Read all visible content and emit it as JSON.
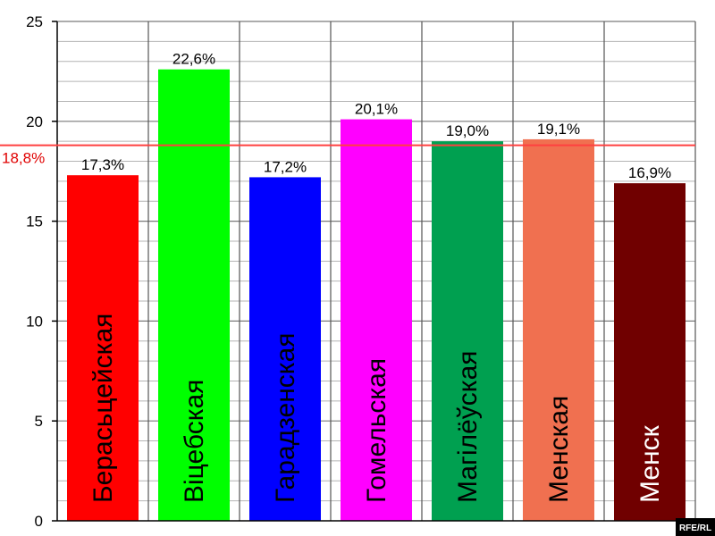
{
  "chart_data": {
    "type": "bar",
    "categories": [
      "Берасьцейская",
      "Віцебская",
      "Гарадзенская",
      "Гомельская",
      "Магілёўская",
      "Менская",
      "Менск"
    ],
    "values": [
      17.3,
      22.6,
      17.2,
      20.1,
      19.0,
      19.1,
      16.9
    ],
    "value_labels": [
      "17,3%",
      "22,6%",
      "17,2%",
      "20,1%",
      "19,0%",
      "19,1%",
      "16,9%"
    ],
    "bar_colors": [
      "#ff0000",
      "#00ff00",
      "#0000ff",
      "#ff00ff",
      "#00a050",
      "#f07050",
      "#700000"
    ],
    "label_colors": [
      "#000000",
      "#000000",
      "#000000",
      "#000000",
      "#000000",
      "#000000",
      "#ffffff"
    ],
    "ylim": [
      0,
      25
    ],
    "yticks": [
      0,
      5,
      10,
      15,
      20,
      25
    ],
    "grid": true,
    "reference_line": {
      "value": 18.8,
      "label": "18,8%",
      "color": "#ff4040"
    },
    "watermark": "RFE/RL"
  }
}
